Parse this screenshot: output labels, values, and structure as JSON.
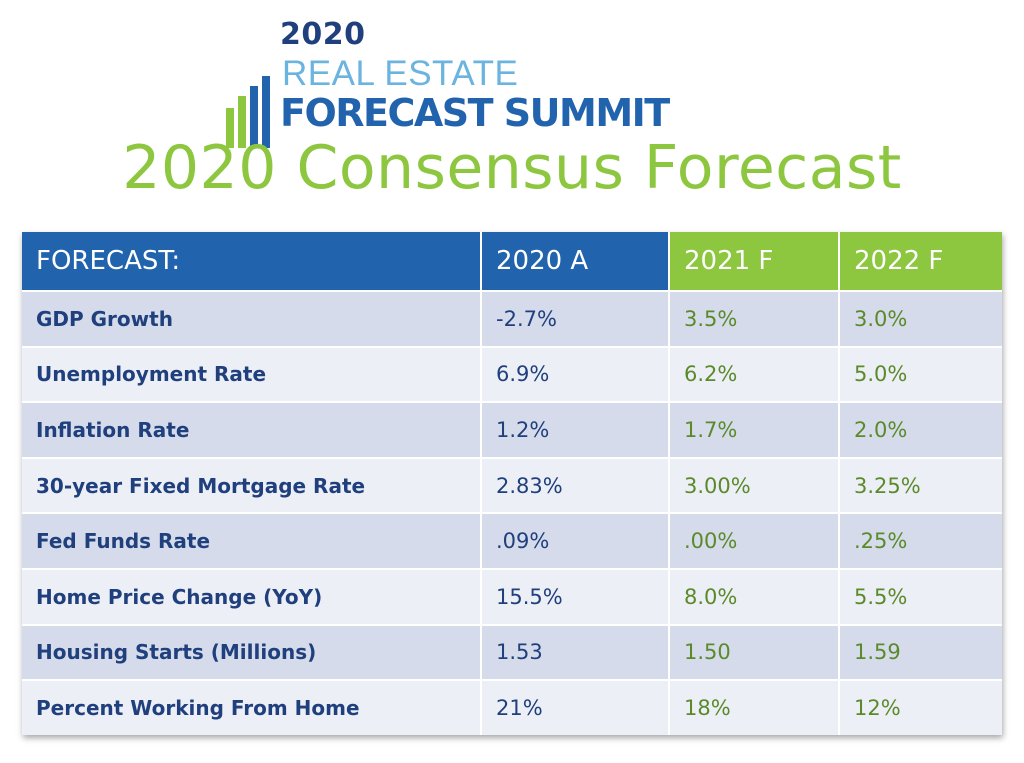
{
  "logo": {
    "year": "2020",
    "line1": "REAL ESTATE",
    "line2": "FORECAST SUMMIT"
  },
  "title": "2020 Consensus Forecast",
  "colors": {
    "blue": "#2163ad",
    "navy": "#1f3f7d",
    "green": "#8dc63f",
    "light_blue": "#6cb4e0"
  },
  "table": {
    "headers": [
      "FORECAST:",
      "2020 A",
      "2021 F",
      "2022 F"
    ],
    "rows": [
      {
        "label": "GDP Growth",
        "a2020": "-2.7%",
        "f2021": "3.5%",
        "f2022": "3.0%"
      },
      {
        "label": "Unemployment Rate",
        "a2020": "6.9%",
        "f2021": "6.2%",
        "f2022": "5.0%"
      },
      {
        "label": "Inflation Rate",
        "a2020": "1.2%",
        "f2021": "1.7%",
        "f2022": "2.0%"
      },
      {
        "label": "30-year Fixed Mortgage Rate",
        "a2020": "2.83%",
        "f2021": "3.00%",
        "f2022": "3.25%"
      },
      {
        "label": "Fed Funds Rate",
        "a2020": ".09%",
        "f2021": ".00%",
        "f2022": ".25%"
      },
      {
        "label": "Home Price Change (YoY)",
        "a2020": "15.5%",
        "f2021": "8.0%",
        "f2022": "5.5%"
      },
      {
        "label": "Housing Starts (Millions)",
        "a2020": "1.53",
        "f2021": "1.50",
        "f2022": "1.59"
      },
      {
        "label": "Percent Working From Home",
        "a2020": "21%",
        "f2021": "18%",
        "f2022": "12%"
      }
    ]
  }
}
